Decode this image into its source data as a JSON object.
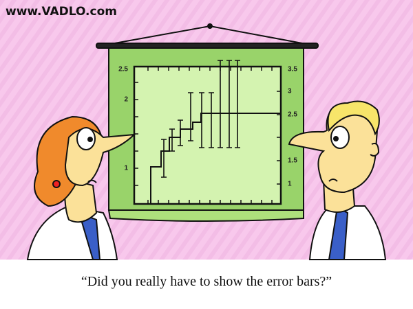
{
  "watermark": "www.VADLO.com",
  "chart": {
    "left_ticks": [
      "2.5",
      "2",
      "1"
    ],
    "right_ticks": [
      "3.5",
      "3",
      "2.5",
      "1.5",
      "1"
    ]
  },
  "caption": "“Did you really have to show the error bars?”"
}
